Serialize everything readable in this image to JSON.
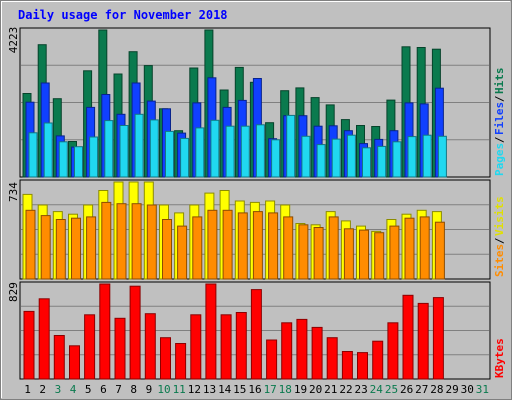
{
  "chart_data": {
    "type": "bar",
    "title": "Daily usage for November 2018",
    "categories": [
      "1",
      "2",
      "3",
      "4",
      "5",
      "6",
      "7",
      "8",
      "9",
      "10",
      "11",
      "12",
      "13",
      "14",
      "15",
      "16",
      "17",
      "18",
      "19",
      "20",
      "21",
      "22",
      "23",
      "24",
      "25",
      "26",
      "27",
      "28",
      "29",
      "30",
      "31"
    ],
    "weekend_days": [
      "3",
      "4",
      "10",
      "11",
      "17",
      "18",
      "24",
      "25",
      "31"
    ],
    "panels": [
      {
        "id": "hits-files-pages",
        "ymax_label": "4223",
        "ymax": 4223,
        "series": [
          {
            "name": "Hits",
            "color": "#0a7a4e",
            "values": [
              2400,
              3800,
              2250,
              1020,
              3050,
              4223,
              2960,
              3600,
              3200,
              1960,
              1330,
              3130,
              4223,
              2500,
              3150,
              2720,
              1560,
              2480,
              2560,
              2280,
              2070,
              1650,
              1480,
              1450,
              2210,
              3740,
              3720,
              3670,
              0
            ]
          },
          {
            "name": "Files",
            "color": "#1040ff",
            "values": [
              2150,
              2700,
              1180,
              860,
              2000,
              2370,
              1800,
              2700,
              2180,
              1960,
              1260,
              2130,
              2850,
              2000,
              2200,
              2830,
              1100,
              1760,
              1760,
              1460,
              1470,
              1330,
              960,
              1080,
              1330,
              2130,
              2100,
              2550,
              0
            ]
          },
          {
            "name": "Pages",
            "color": "#20d8f0",
            "values": [
              1270,
              1550,
              1010,
              870,
              1150,
              1620,
              1480,
              1800,
              1640,
              1310,
              1110,
              1410,
              1630,
              1460,
              1460,
              1500,
              1070,
              1770,
              1170,
              930,
              1090,
              1200,
              840,
              880,
              1010,
              1160,
              1200,
              1170,
              0
            ]
          }
        ]
      },
      {
        "id": "visits-sites",
        "ymax_label": "734",
        "ymax": 734,
        "series": [
          {
            "name": "Visits",
            "color": "#ffff00",
            "values": [
              640,
              560,
              510,
              490,
              560,
              670,
              734,
              734,
              734,
              560,
              500,
              560,
              650,
              670,
              590,
              580,
              590,
              560,
              420,
              410,
              510,
              440,
              400,
              360,
              450,
              490,
              520,
              510,
              0
            ]
          },
          {
            "name": "Sites",
            "color": "#ff8c00",
            "values": [
              520,
              480,
              450,
              460,
              470,
              580,
              570,
              570,
              560,
              450,
              400,
              470,
              520,
              520,
              500,
              510,
              500,
              470,
              410,
              390,
              470,
              380,
              370,
              350,
              400,
              460,
              470,
              430,
              0
            ]
          }
        ]
      },
      {
        "id": "kbytes",
        "ymax_label": "829",
        "ymax": 829,
        "series": [
          {
            "name": "KBytes",
            "color": "#ff0000",
            "values": [
              590,
              700,
              380,
              290,
              560,
              829,
              530,
              810,
              570,
              360,
              310,
              560,
              829,
              560,
              580,
              780,
              340,
              490,
              520,
              450,
              360,
              240,
              230,
              330,
              490,
              730,
              660,
              710,
              0
            ]
          }
        ]
      }
    ]
  }
}
